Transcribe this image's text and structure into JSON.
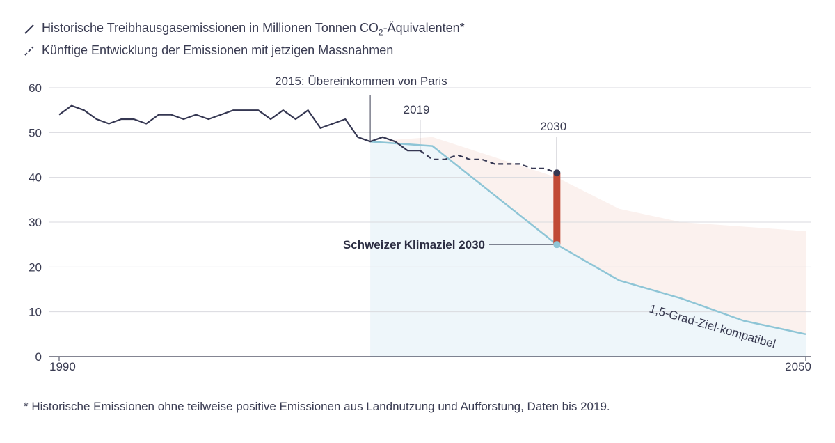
{
  "legend": {
    "historical_prefix": "Historische Treibhausgasemissionen in Millionen Tonnen CO",
    "historical_sub": "2",
    "historical_suffix": "-Äquivalenten*",
    "future": "Künftige Entwicklung der Emissionen mit jetzigen Massnahmen"
  },
  "footnote": "* Historische Emissionen ohne teilweise positive Emissionen aus Landnutzung und Aufforstung, Daten bis 2019.",
  "colors": {
    "line": "#353752",
    "target": "#8ec5d6",
    "target_area": "#eef6fa",
    "scenario_area": "#fbf1ee",
    "gap_bar": "#c14a36",
    "grid": "#d9dadf"
  },
  "chart_data": {
    "type": "line",
    "xlim": [
      1990,
      2050
    ],
    "ylim": [
      0,
      60
    ],
    "yticks": [
      0,
      10,
      20,
      30,
      40,
      50,
      60
    ],
    "xtick_labels": [
      "1990",
      "2050"
    ],
    "series": [
      {
        "name": "Historische Treibhausgasemissionen",
        "style": "solid",
        "x": [
          1990,
          1991,
          1992,
          1993,
          1994,
          1995,
          1996,
          1997,
          1998,
          1999,
          2000,
          2001,
          2002,
          2003,
          2004,
          2005,
          2006,
          2007,
          2008,
          2009,
          2010,
          2011,
          2012,
          2013,
          2014,
          2015,
          2016,
          2017,
          2018,
          2019
        ],
        "values": [
          54,
          56,
          55,
          53,
          52,
          53,
          53,
          52,
          54,
          54,
          53,
          54,
          53,
          54,
          55,
          55,
          55,
          53,
          55,
          53,
          55,
          51,
          52,
          53,
          49,
          48,
          49,
          48,
          46,
          46
        ]
      },
      {
        "name": "Künftige Entwicklung der Emissionen mit jetzigen Massnahmen",
        "style": "dashed",
        "x": [
          2019,
          2020,
          2021,
          2022,
          2023,
          2024,
          2025,
          2026,
          2027,
          2028,
          2029,
          2030
        ],
        "values": [
          46,
          44,
          44,
          45,
          44,
          44,
          43,
          43,
          43,
          42,
          42,
          41
        ]
      },
      {
        "name": "1,5-Grad-Ziel-kompatibel",
        "style": "solid",
        "x": [
          2015,
          2020,
          2030,
          2035,
          2040,
          2045,
          2050
        ],
        "values": [
          48,
          47,
          25,
          17,
          13,
          8,
          5
        ]
      }
    ],
    "scenario_band_upper": {
      "x": [
        2015,
        2020,
        2030,
        2035,
        2040,
        2050
      ],
      "values": [
        48,
        49,
        40,
        33,
        30,
        28
      ]
    },
    "gap_bar": {
      "x": 2030,
      "from": 25,
      "to": 41
    },
    "annotations": {
      "paris": {
        "year": 2015,
        "label": "2015: Übereinkommen von Paris"
      },
      "y2019": {
        "year": 2019,
        "label": "2019"
      },
      "y2030": {
        "year": 2030,
        "label": "2030"
      },
      "target": {
        "label": "Schweizer Klimaziel 2030",
        "value": 25
      },
      "path_label": "1,5-Grad-Ziel-kompatibel"
    }
  }
}
